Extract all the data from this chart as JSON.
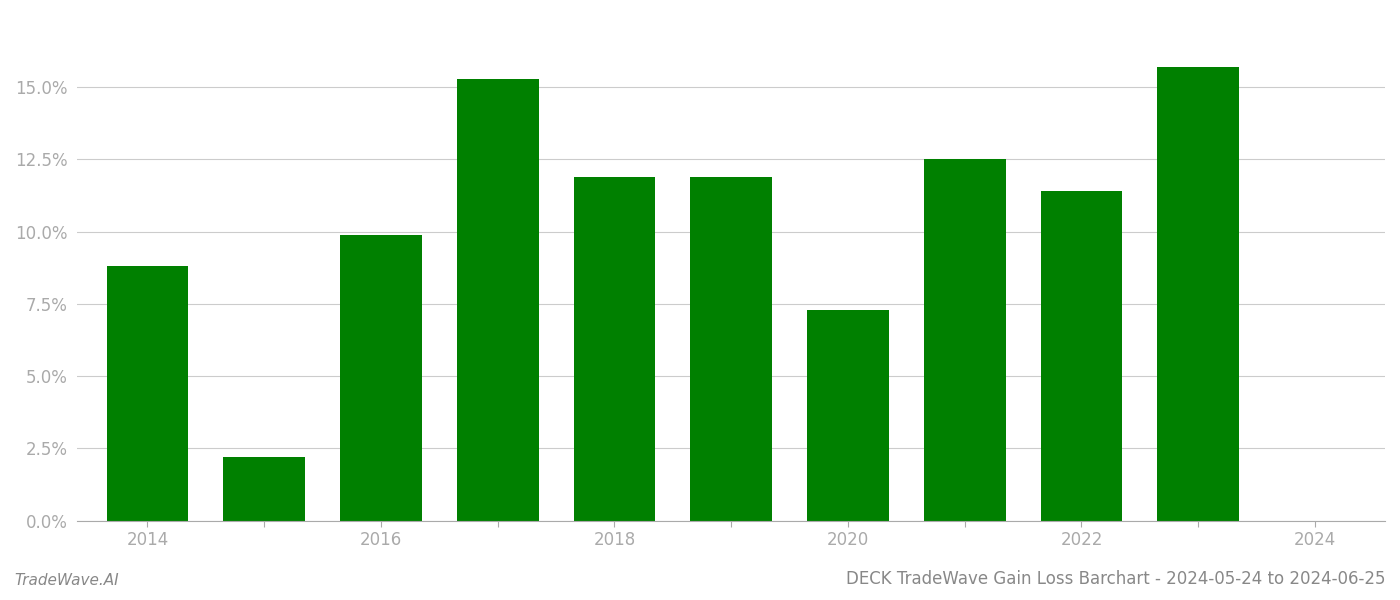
{
  "years": [
    2014,
    2015,
    2016,
    2017,
    2018,
    2019,
    2020,
    2021,
    2022,
    2023
  ],
  "values": [
    0.088,
    0.022,
    0.099,
    0.153,
    0.119,
    0.119,
    0.073,
    0.125,
    0.114,
    0.157
  ],
  "bar_color": "#008000",
  "background_color": "#ffffff",
  "grid_color": "#cccccc",
  "title": "DECK TradeWave Gain Loss Barchart - 2024-05-24 to 2024-06-25",
  "footer_left": "TradeWave.AI",
  "xlim": [
    2013.4,
    2024.6
  ],
  "ylim": [
    0,
    0.175
  ],
  "yticks": [
    0.0,
    0.025,
    0.05,
    0.075,
    0.1,
    0.125,
    0.15
  ],
  "xticks_all": [
    2014,
    2015,
    2016,
    2017,
    2018,
    2019,
    2020,
    2021,
    2022,
    2023,
    2024
  ],
  "xtick_labels": [
    "2014",
    "",
    "2016",
    "",
    "2018",
    "",
    "2020",
    "",
    "2022",
    "",
    "2024"
  ],
  "bar_width": 0.7,
  "tick_label_color": "#aaaaaa",
  "footer_fontsize": 11,
  "title_fontsize": 12
}
